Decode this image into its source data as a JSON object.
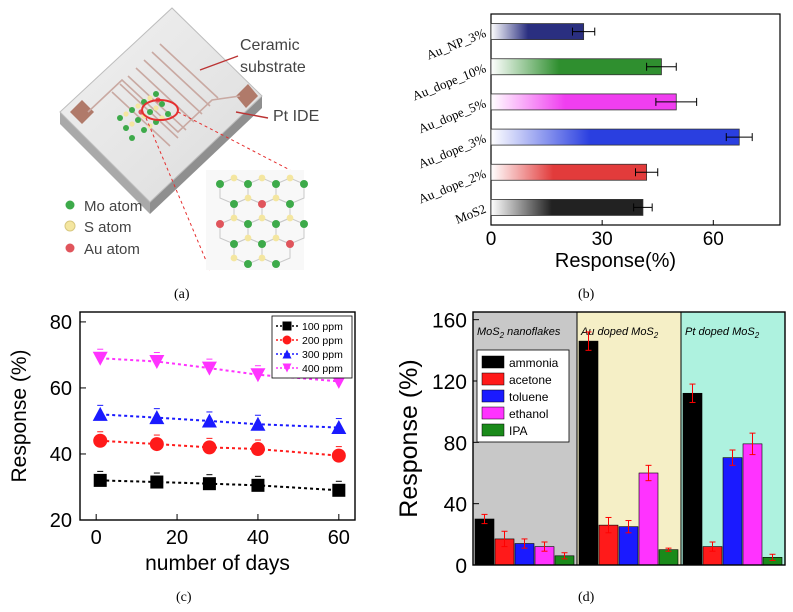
{
  "captions": {
    "a": "(a)",
    "b": "(b)",
    "c": "(c)",
    "d": "(d)"
  },
  "diagram": {
    "ceramic_line1": "Ceramic",
    "ceramic_line2": "substrate",
    "pt_ide": "Pt IDE",
    "legend": [
      {
        "label": "Mo atom",
        "color": "#3daa4a"
      },
      {
        "label": "S atom",
        "color": "#f4e6a0"
      },
      {
        "label": "Au atom",
        "color": "#e0555c"
      }
    ]
  },
  "chart_data": [
    {
      "id": "b",
      "type": "bar",
      "orientation": "horizontal",
      "categories": [
        "MoS2",
        "Au_dope_2%",
        "Au_dope_3%",
        "Au_dope_5%",
        "Au_dope_10%",
        "Au_NP_3%"
      ],
      "values": [
        41,
        42,
        67,
        50,
        46,
        25
      ],
      "errors": [
        2.5,
        3,
        3.5,
        5.5,
        4,
        3
      ],
      "colors": [
        "#222222",
        "#e23b3b",
        "#2a3fe0",
        "#f03ef0",
        "#2f8f2f",
        "#2a2f80"
      ],
      "xlabel": "Response(%)",
      "xticks": [
        0,
        30,
        60
      ],
      "xlim": [
        0,
        78
      ]
    },
    {
      "id": "c",
      "type": "line",
      "x": [
        1,
        15,
        28,
        40,
        60
      ],
      "series": [
        {
          "name": "100 ppm",
          "values": [
            32,
            31.5,
            31,
            30.5,
            29
          ],
          "color": "#000000",
          "marker": "square"
        },
        {
          "name": "200 ppm",
          "values": [
            44,
            43,
            42,
            41.5,
            39.5
          ],
          "color": "#ff1a1a",
          "marker": "circle"
        },
        {
          "name": "300 ppm",
          "values": [
            52,
            51,
            50,
            49,
            48
          ],
          "color": "#1a1aff",
          "marker": "triangle"
        },
        {
          "name": "400 ppm",
          "values": [
            69,
            68,
            66,
            64,
            62
          ],
          "color": "#ff33ff",
          "marker": "triangle-down"
        }
      ],
      "xlabel": "number of days",
      "ylabel": "Response (%)",
      "xticks": [
        0,
        20,
        40,
        60
      ],
      "yticks": [
        20,
        40,
        60,
        80
      ],
      "xlim": [
        -4,
        64
      ],
      "ylim": [
        20,
        83
      ]
    },
    {
      "id": "d",
      "type": "bar",
      "groups": [
        {
          "label": "MoS",
          "label_sub": "2",
          "label_after": " nanoflakes",
          "bg": "#c8c8c8"
        },
        {
          "label": "Au doped MoS",
          "label_sub": "2",
          "label_after": "",
          "bg": "#f5efc6"
        },
        {
          "label": "Pt doped MoS",
          "label_sub": "2",
          "label_after": "",
          "bg": "#aef2df"
        }
      ],
      "series": [
        {
          "name": "ammonia",
          "color": "#000000",
          "values": [
            30,
            146,
            112
          ],
          "errors": [
            3,
            6,
            6
          ]
        },
        {
          "name": "acetone",
          "color": "#ff1a1a",
          "values": [
            17,
            26,
            12
          ],
          "errors": [
            5,
            5,
            3
          ]
        },
        {
          "name": "toluene",
          "color": "#1a1aff",
          "values": [
            14,
            25,
            70
          ],
          "errors": [
            3,
            4,
            5
          ]
        },
        {
          "name": "ethanol",
          "color": "#ff33ff",
          "values": [
            12,
            60,
            79
          ],
          "errors": [
            3,
            5,
            7
          ]
        },
        {
          "name": "IPA",
          "color": "#1a8a1a",
          "values": [
            6,
            10,
            5
          ],
          "errors": [
            2,
            1,
            2
          ]
        }
      ],
      "ylabel": "Response (%)",
      "yticks": [
        0,
        40,
        80,
        120,
        160
      ],
      "ylim": [
        0,
        165
      ]
    }
  ]
}
